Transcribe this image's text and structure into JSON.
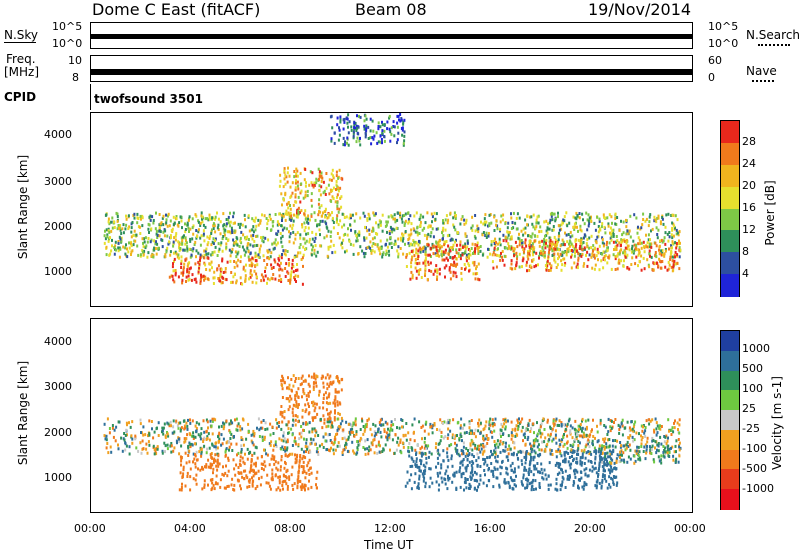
{
  "header": {
    "station": "Dome C East (fitACF)",
    "beam": "Beam 08",
    "date": "19/Nov/2014"
  },
  "panels": {
    "nsky": {
      "label": "N.Sky",
      "right_label": "N.Search",
      "tick_top": "10^5",
      "tick_bottom": "10^0"
    },
    "freq": {
      "label_line1": "Freq.",
      "label_line2": "[MHz]",
      "right_label": "Nave",
      "tick_left_top": "10",
      "tick_left_bottom": "8",
      "tick_right_top": "60",
      "tick_right_bottom": "0"
    },
    "cpid": {
      "label": "CPID",
      "program": "twofsound 3501"
    }
  },
  "colorbars": {
    "power": {
      "title": "Power [dB]",
      "ticks": [
        "28",
        "24",
        "20",
        "16",
        "12",
        "8",
        "4"
      ],
      "colors": [
        "#e8281c",
        "#f07a1c",
        "#f0b41e",
        "#e6df2e",
        "#7ec846",
        "#2e8f5a",
        "#2d4fa0",
        "#1f24d8"
      ]
    },
    "velocity": {
      "title": "Velocity [m s-1]",
      "ticks": [
        "1000",
        "500",
        "100",
        "25",
        "-25",
        "-100",
        "-500",
        "-1000"
      ],
      "colors": [
        "#1f3fa0",
        "#2e6f9a",
        "#2e8f5a",
        "#6ec940",
        "#c8c8c8",
        "#f0a020",
        "#f07a1c",
        "#e83c1c",
        "#e8101c"
      ]
    }
  },
  "axes": {
    "ylabel": "Slant Range [km]",
    "xlabel": "Time UT",
    "y_ticks": [
      "4000",
      "3000",
      "2000",
      "1000"
    ],
    "x_ticks": [
      "00:00",
      "04:00",
      "08:00",
      "12:00",
      "16:00",
      "20:00",
      "00:00"
    ]
  },
  "chart_data": {
    "type": "heatmap",
    "title": "Dome C East (fitACF)",
    "xlabel": "Time UT",
    "ylabel": "Slant Range [km]",
    "xlim": [
      0,
      24
    ],
    "ylim": [
      180,
      4500
    ],
    "x_ticks_hours": [
      0,
      4,
      8,
      12,
      16,
      20,
      24
    ],
    "y_ticks_km": [
      1000,
      2000,
      3000,
      4000
    ],
    "power_scale_db": [
      0,
      30
    ],
    "velocity_scale_ms": [
      -1000,
      1000
    ],
    "power_bands": [
      {
        "t_start": 0.5,
        "t_end": 23.5,
        "r_low": 1300,
        "r_high": 2300,
        "power_db": 14
      },
      {
        "t_start": 3.0,
        "t_end": 8.5,
        "r_low": 700,
        "r_high": 1300,
        "power_db": 24
      },
      {
        "t_start": 7.5,
        "t_end": 10.0,
        "r_low": 2200,
        "r_high": 3300,
        "power_db": 20
      },
      {
        "t_start": 12.5,
        "t_end": 15.5,
        "r_low": 800,
        "r_high": 1600,
        "power_db": 24
      },
      {
        "t_start": 16.0,
        "t_end": 23.5,
        "r_low": 1000,
        "r_high": 1700,
        "power_db": 22
      },
      {
        "t_start": 9.5,
        "t_end": 12.5,
        "r_low": 3800,
        "r_high": 4500,
        "power_db": 6
      }
    ],
    "velocity_bands": [
      {
        "t_start": 0.5,
        "t_end": 23.5,
        "r_low": 1500,
        "r_high": 2300,
        "velocity": 0
      },
      {
        "t_start": 3.5,
        "t_end": 9.0,
        "r_low": 700,
        "r_high": 1500,
        "velocity": -300
      },
      {
        "t_start": 7.5,
        "t_end": 10.0,
        "r_low": 2200,
        "r_high": 3300,
        "velocity": -200
      },
      {
        "t_start": 12.5,
        "t_end": 21.0,
        "r_low": 700,
        "r_high": 1600,
        "velocity": 300
      },
      {
        "t_start": 20.0,
        "t_end": 23.5,
        "r_low": 1300,
        "r_high": 1700,
        "velocity": 80
      }
    ]
  }
}
